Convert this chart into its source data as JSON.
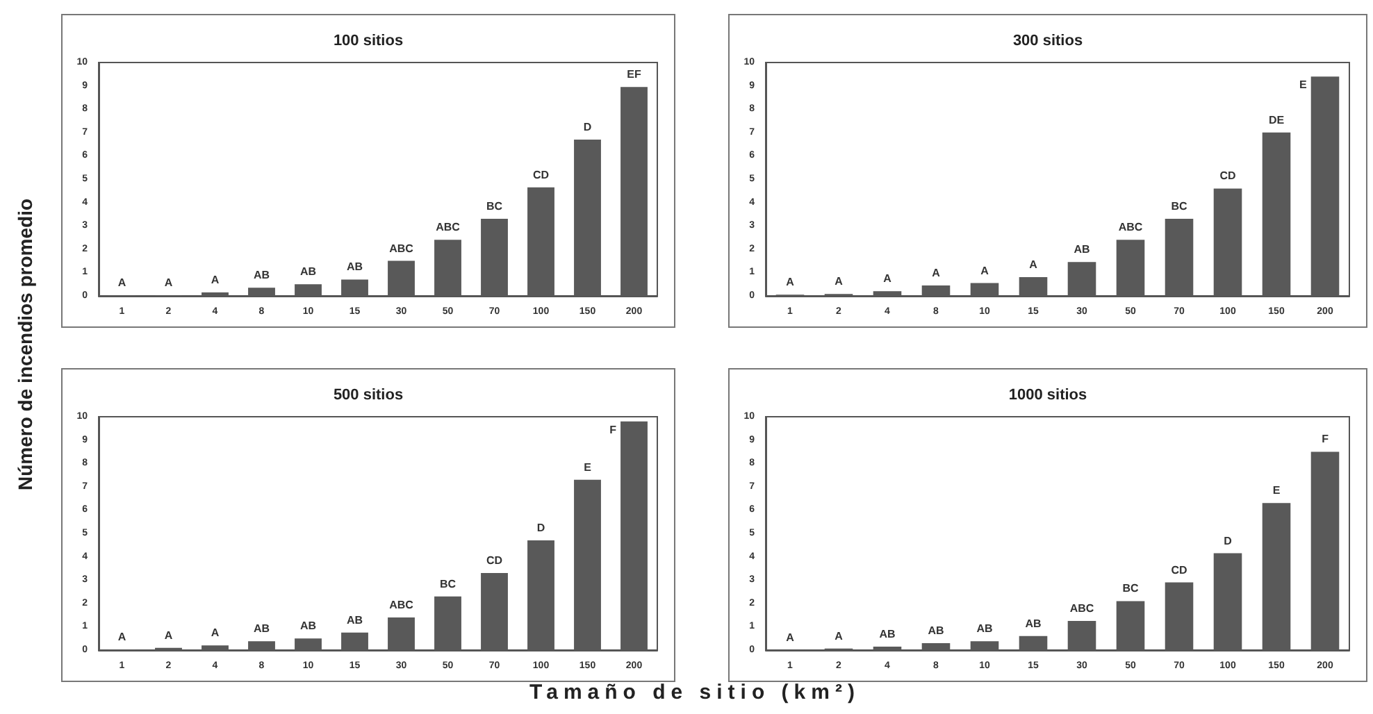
{
  "chart_data": [
    {
      "type": "bar",
      "title": "100 sitios",
      "ylabel": "Número de incendios promedio",
      "categories": [
        "1",
        "2",
        "4",
        "8",
        "10",
        "15",
        "30",
        "50",
        "70",
        "100",
        "150",
        "200"
      ],
      "color": "#595959",
      "values": [
        0.02,
        0.03,
        0.15,
        0.35,
        0.5,
        0.7,
        1.5,
        2.4,
        3.3,
        4.65,
        6.7,
        8.95
      ],
      "value_labels": [
        "A",
        "A",
        "A",
        "AB",
        "AB",
        "AB",
        "ABC",
        "ABC",
        "BC",
        "CD",
        "D",
        "EF"
      ],
      "ylim": [
        0,
        10
      ],
      "yticks": [
        0,
        1,
        2,
        3,
        4,
        5,
        6,
        7,
        8,
        9,
        10
      ],
      "grid": false
    },
    {
      "type": "bar",
      "title": "300 sitios",
      "categories": [
        "1",
        "2",
        "4",
        "8",
        "10",
        "15",
        "30",
        "50",
        "70",
        "100",
        "150",
        "200"
      ],
      "color": "#595959",
      "values": [
        0.05,
        0.08,
        0.2,
        0.45,
        0.55,
        0.8,
        1.45,
        2.4,
        3.3,
        4.6,
        7.0,
        9.4
      ],
      "value_labels": [
        "A",
        "A",
        "A",
        "A",
        "A",
        "A",
        "AB",
        "ABC",
        "BC",
        "CD",
        "DE",
        "E"
      ],
      "ylim": [
        0,
        10
      ],
      "yticks": [
        0,
        1,
        2,
        3,
        4,
        5,
        6,
        7,
        8,
        9,
        10
      ],
      "grid": false
    },
    {
      "type": "bar",
      "title": "500 sitios",
      "xlabel": "Tamaño de sitio (km²)",
      "categories": [
        "1",
        "2",
        "4",
        "8",
        "10",
        "15",
        "30",
        "50",
        "70",
        "100",
        "150",
        "200"
      ],
      "color": "#595959",
      "values": [
        0.03,
        0.1,
        0.2,
        0.38,
        0.5,
        0.75,
        1.4,
        2.3,
        3.3,
        4.7,
        7.3,
        9.8
      ],
      "value_labels": [
        "A",
        "A",
        "A",
        "AB",
        "AB",
        "AB",
        "ABC",
        "BC",
        "CD",
        "D",
        "E",
        "F"
      ],
      "ylim": [
        0,
        10
      ],
      "yticks": [
        0,
        1,
        2,
        3,
        4,
        5,
        6,
        7,
        8,
        9,
        10
      ],
      "grid": false
    },
    {
      "type": "bar",
      "title": "1000 sitios",
      "categories": [
        "1",
        "2",
        "4",
        "8",
        "10",
        "15",
        "30",
        "50",
        "70",
        "100",
        "150",
        "200"
      ],
      "color": "#595959",
      "values": [
        0.01,
        0.07,
        0.15,
        0.3,
        0.38,
        0.6,
        1.25,
        2.1,
        2.9,
        4.15,
        6.3,
        8.5
      ],
      "value_labels": [
        "A",
        "A",
        "AB",
        "AB",
        "AB",
        "AB",
        "ABC",
        "BC",
        "CD",
        "D",
        "E",
        "F"
      ],
      "ylim": [
        0,
        10
      ],
      "yticks": [
        0,
        1,
        2,
        3,
        4,
        5,
        6,
        7,
        8,
        9,
        10
      ],
      "grid": false
    }
  ]
}
